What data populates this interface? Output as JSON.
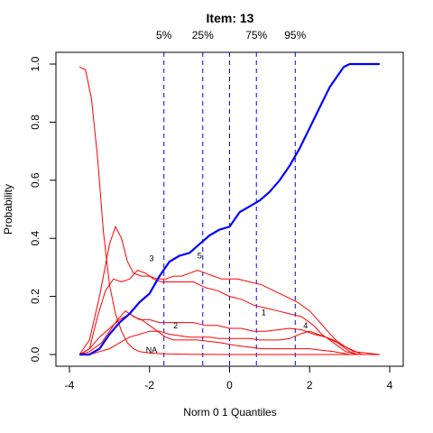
{
  "chart_data": {
    "type": "line",
    "title": "Item:  13",
    "xlabel": "Norm 0 1 Quantiles",
    "ylabel": "Probability",
    "xlim": [
      -4,
      4
    ],
    "ylim": [
      0,
      1
    ],
    "x_ticks": [
      -4,
      -2,
      0,
      2,
      4
    ],
    "y_ticks": [
      0.0,
      0.2,
      0.4,
      0.6,
      0.8,
      1.0
    ],
    "x_tick_labels": [
      "-4",
      "-2",
      "0",
      "2",
      "4"
    ],
    "y_tick_labels": [
      "0.0",
      "0.2",
      "0.4",
      "0.6",
      "0.8",
      "1.0"
    ],
    "quantile_lines": [
      {
        "label": "5%",
        "x": -1.64
      },
      {
        "label": "25%",
        "x": -0.67
      },
      {
        "label": "",
        "x": 0.0
      },
      {
        "label": "75%",
        "x": 0.67
      },
      {
        "label": "95%",
        "x": 1.64
      }
    ],
    "colors": {
      "options": "#ff0000",
      "expected": "#0000ff",
      "quantiles": "#0000ff"
    },
    "expected_curve": {
      "x": [
        -3.75,
        -3.5,
        -3.25,
        -3.0,
        -2.75,
        -2.5,
        -2.25,
        -2.0,
        -1.75,
        -1.5,
        -1.25,
        -1.0,
        -0.75,
        -0.5,
        -0.25,
        0.0,
        0.25,
        0.5,
        0.75,
        1.0,
        1.25,
        1.5,
        1.75,
        2.0,
        2.25,
        2.5,
        2.75,
        2.85,
        3.0,
        3.25,
        3.5,
        3.75
      ],
      "y": [
        0.0,
        0.0,
        0.02,
        0.07,
        0.11,
        0.14,
        0.18,
        0.21,
        0.27,
        0.32,
        0.34,
        0.35,
        0.38,
        0.41,
        0.43,
        0.44,
        0.49,
        0.51,
        0.53,
        0.56,
        0.6,
        0.65,
        0.71,
        0.78,
        0.85,
        0.92,
        0.97,
        0.99,
        1.0,
        1.0,
        1.0,
        1.0
      ]
    },
    "series": [
      {
        "name": "NA",
        "x": [
          -3.75,
          -3.6,
          -3.45,
          -3.3,
          -3.15,
          -3.0,
          -2.85,
          -2.7,
          -2.55,
          -2.4,
          -2.25,
          -2.0,
          -1.75,
          -1.5,
          -1.0,
          0.0,
          1.0,
          2.0,
          3.0,
          3.75
        ],
        "y": [
          0.99,
          0.98,
          0.88,
          0.68,
          0.42,
          0.24,
          0.14,
          0.08,
          0.04,
          0.02,
          0.01,
          0.005,
          0.003,
          0.002,
          0.001,
          0.0,
          0.0,
          0.0,
          0.0,
          0.0
        ]
      },
      {
        "name": "1",
        "x": [
          -3.75,
          -3.5,
          -3.3,
          -3.1,
          -2.9,
          -2.7,
          -2.5,
          -2.3,
          -2.1,
          -1.9,
          -1.7,
          -1.5,
          -1.2,
          -0.9,
          -0.6,
          -0.3,
          0.0,
          0.3,
          0.6,
          0.9,
          1.2,
          1.5,
          1.8,
          2.1,
          2.3,
          2.5,
          2.7,
          2.9,
          3.2,
          3.75
        ],
        "y": [
          0.0,
          0.02,
          0.13,
          0.22,
          0.26,
          0.25,
          0.26,
          0.29,
          0.28,
          0.26,
          0.25,
          0.25,
          0.25,
          0.25,
          0.23,
          0.22,
          0.2,
          0.19,
          0.17,
          0.16,
          0.15,
          0.14,
          0.13,
          0.1,
          0.07,
          0.05,
          0.03,
          0.01,
          0.0,
          0.0
        ]
      },
      {
        "name": "2",
        "x": [
          -3.75,
          -3.5,
          -3.25,
          -3.0,
          -2.75,
          -2.5,
          -2.25,
          -2.0,
          -1.75,
          -1.5,
          -1.2,
          -0.9,
          -0.6,
          -0.3,
          0.0,
          0.3,
          0.6,
          0.9,
          1.2,
          1.5,
          1.8,
          2.1,
          2.4,
          2.7,
          3.0,
          3.3,
          3.75
        ],
        "y": [
          0.0,
          0.02,
          0.06,
          0.09,
          0.12,
          0.14,
          0.12,
          0.12,
          0.11,
          0.11,
          0.11,
          0.11,
          0.1,
          0.1,
          0.09,
          0.09,
          0.08,
          0.08,
          0.085,
          0.09,
          0.085,
          0.07,
          0.06,
          0.04,
          0.02,
          0.0,
          0.0
        ]
      },
      {
        "name": "3",
        "x": [
          -3.75,
          -3.5,
          -3.25,
          -3.0,
          -2.85,
          -2.7,
          -2.55,
          -2.4,
          -2.2,
          -2.0,
          -1.8,
          -1.6,
          -1.4,
          -1.2,
          -1.0,
          -0.8,
          -0.6,
          -0.4,
          -0.2,
          0.0,
          0.2,
          0.5,
          0.8,
          1.1,
          1.4,
          1.7,
          2.0,
          2.2,
          2.45,
          2.65,
          2.85,
          3.1,
          3.75
        ],
        "y": [
          0.0,
          0.05,
          0.2,
          0.38,
          0.44,
          0.4,
          0.32,
          0.28,
          0.27,
          0.27,
          0.26,
          0.26,
          0.27,
          0.27,
          0.28,
          0.29,
          0.28,
          0.27,
          0.26,
          0.26,
          0.26,
          0.25,
          0.24,
          0.22,
          0.2,
          0.18,
          0.15,
          0.12,
          0.08,
          0.05,
          0.03,
          0.01,
          0.0
        ]
      },
      {
        "name": "4",
        "x": [
          -3.75,
          -3.5,
          -3.2,
          -3.0,
          -2.8,
          -2.6,
          -2.4,
          -2.2,
          -2.0,
          -1.8,
          -1.6,
          -1.4,
          -1.2,
          -1.0,
          -0.8,
          -0.5,
          -0.2,
          0.0,
          0.2,
          0.5,
          0.8,
          1.1,
          1.4,
          1.7,
          2.0,
          2.3,
          2.6,
          2.8,
          3.0,
          3.25,
          3.75
        ],
        "y": [
          0.0,
          0.01,
          0.04,
          0.08,
          0.12,
          0.15,
          0.13,
          0.12,
          0.1,
          0.08,
          0.06,
          0.05,
          0.05,
          0.05,
          0.05,
          0.045,
          0.04,
          0.035,
          0.03,
          0.025,
          0.02,
          0.02,
          0.02,
          0.02,
          0.02,
          0.015,
          0.01,
          0.005,
          0.0,
          0.0,
          0.0
        ]
      },
      {
        "name": "5",
        "x": [
          -3.75,
          -3.5,
          -3.25,
          -3.0,
          -2.75,
          -2.5,
          -2.25,
          -2.0,
          -1.75,
          -1.5,
          -1.25,
          -1.0,
          -0.75,
          -0.5,
          -0.25,
          0.0,
          0.25,
          0.5,
          0.75,
          1.0,
          1.25,
          1.5,
          1.75,
          2.0,
          2.2,
          2.4,
          2.6,
          2.8,
          3.0,
          3.2,
          3.75
        ],
        "y": [
          0.0,
          0.0,
          0.01,
          0.02,
          0.04,
          0.06,
          0.07,
          0.08,
          0.08,
          0.07,
          0.065,
          0.06,
          0.06,
          0.06,
          0.055,
          0.055,
          0.055,
          0.055,
          0.05,
          0.05,
          0.05,
          0.055,
          0.07,
          0.08,
          0.07,
          0.06,
          0.05,
          0.03,
          0.01,
          0.0,
          0.0
        ]
      }
    ],
    "curve_labels": [
      {
        "text": "3",
        "x": -1.95,
        "y": 0.33
      },
      {
        "text": "5",
        "x": -0.75,
        "y": 0.34
      },
      {
        "text": "2",
        "x": -1.35,
        "y": 0.1
      },
      {
        "text": "1",
        "x": 0.85,
        "y": 0.145
      },
      {
        "text": "4",
        "x": 1.9,
        "y": 0.1
      },
      {
        "text": "NA",
        "x": -1.95,
        "y": 0.015
      }
    ]
  }
}
